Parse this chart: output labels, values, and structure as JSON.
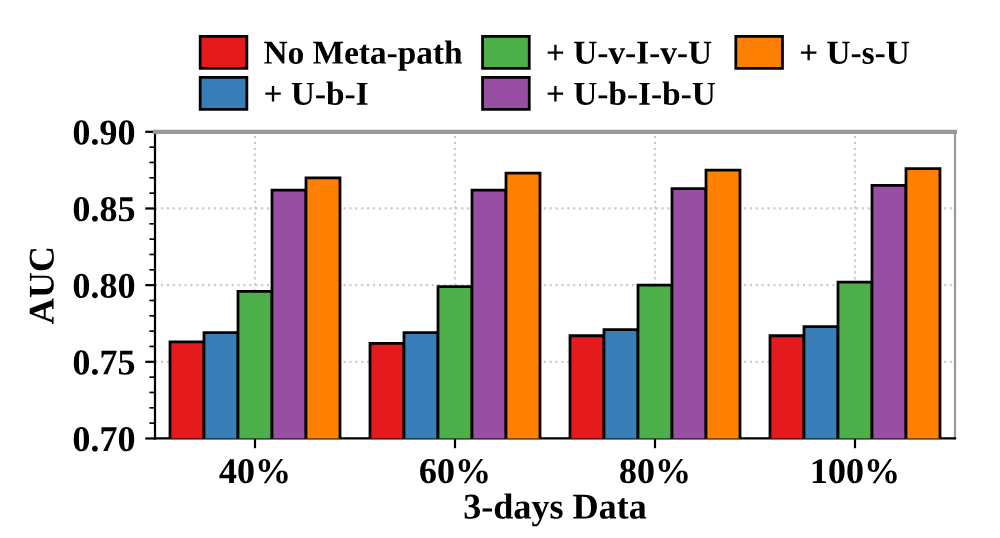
{
  "chart_data": {
    "type": "bar",
    "xlabel": "3-days Data",
    "ylabel": "AUC",
    "categories": [
      "40%",
      "60%",
      "80%",
      "100%"
    ],
    "series": [
      {
        "name": "No Meta-path",
        "color": "#e41a1c",
        "values": [
          0.763,
          0.762,
          0.767,
          0.767
        ]
      },
      {
        "name": "+ U-b-I",
        "color": "#377eb8",
        "values": [
          0.769,
          0.769,
          0.771,
          0.773
        ]
      },
      {
        "name": "+ U-v-I-v-U",
        "color": "#4daf4a",
        "values": [
          0.796,
          0.799,
          0.8,
          0.802
        ]
      },
      {
        "name": "+ U-b-I-b-U",
        "color": "#984ea3",
        "values": [
          0.862,
          0.862,
          0.863,
          0.865
        ]
      },
      {
        "name": "+ U-s-U",
        "color": "#ff7f00",
        "values": [
          0.87,
          0.873,
          0.875,
          0.876
        ]
      }
    ],
    "ylim": [
      0.7,
      0.9
    ],
    "yticks": [
      {
        "value": 0.7,
        "label": "0.70"
      },
      0.75,
      {
        "value": 0.8,
        "label": "0.80"
      },
      0.85,
      {
        "value": 0.9,
        "label": "0.90"
      }
    ],
    "grid": true,
    "legend": "top"
  }
}
